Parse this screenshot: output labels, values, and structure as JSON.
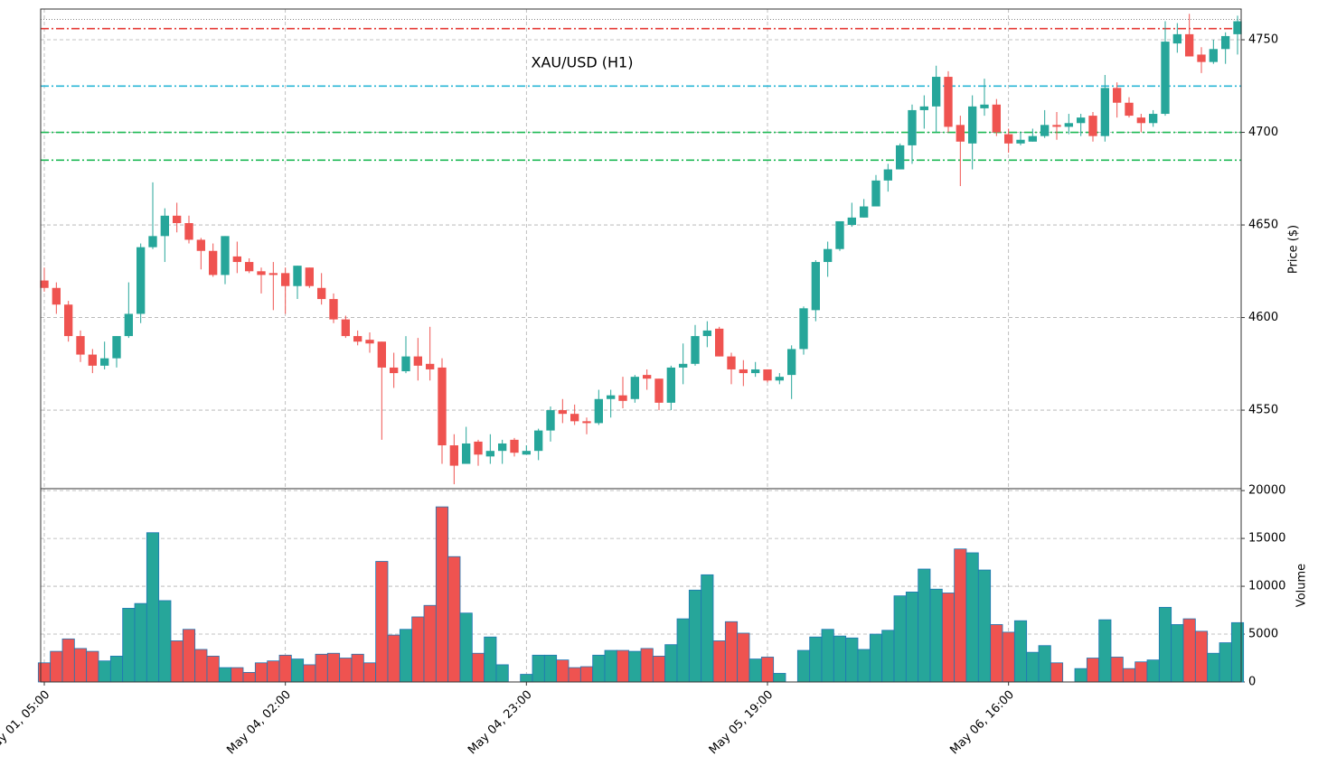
{
  "chart_data": {
    "type": "candlestick",
    "title": "XAU/USD (H1)",
    "ylabel": "Price ($)",
    "categories": [
      "May 01, 05:00",
      null,
      null,
      null,
      null,
      null,
      null,
      null,
      null,
      null,
      null,
      null,
      null,
      null,
      null,
      null,
      null,
      null,
      null,
      null,
      "May 04, 02:00",
      null,
      null,
      null,
      null,
      null,
      null,
      null,
      null,
      null,
      null,
      null,
      null,
      null,
      null,
      null,
      null,
      null,
      null,
      null,
      "May 04, 23:00",
      null,
      null,
      null,
      null,
      null,
      null,
      null,
      null,
      null,
      null,
      null,
      null,
      null,
      null,
      null,
      null,
      null,
      null,
      null,
      "May 05, 19:00",
      null,
      null,
      null,
      null,
      null,
      null,
      null,
      null,
      null,
      null,
      null,
      null,
      null,
      null,
      null,
      null,
      null,
      null,
      null,
      "May 06, 16:00",
      null,
      null,
      null,
      null,
      null,
      null,
      null,
      null,
      null,
      null,
      null,
      null,
      null,
      null,
      null,
      null,
      null,
      null,
      null
    ],
    "open": [
      4620,
      4616,
      4607,
      4590,
      4580,
      4574,
      4578,
      4590,
      4602,
      4638,
      4644,
      4655,
      4651,
      4642,
      4636,
      4623,
      4633,
      4630,
      4625,
      4624,
      4624,
      4617,
      4627,
      4616,
      4610,
      4599,
      4590,
      4588,
      4587,
      4573,
      4571,
      4579,
      4575,
      4573,
      4531,
      4521,
      4533,
      4525,
      4528,
      4534,
      4526,
      4528,
      4539,
      4550,
      4548,
      4544,
      4543,
      4556,
      4558,
      4556,
      4569,
      4567,
      4554,
      4573,
      4575,
      4590,
      4594,
      4579,
      4572,
      4570,
      4572,
      4566,
      4569,
      4583,
      4604,
      4630,
      4637,
      4650,
      4654,
      4660,
      4674,
      4680,
      4693,
      4712,
      4714,
      4730,
      4704,
      4694,
      4713,
      4715,
      4699,
      4694,
      4695,
      4698,
      4704,
      4703,
      4705,
      4709,
      4698,
      4724,
      4716,
      4708,
      4705,
      4710,
      4748,
      4753,
      4742,
      4738,
      4745,
      4753
    ],
    "high": [
      4627,
      4619,
      4609,
      4593,
      4583,
      4587,
      4590,
      4619,
      4640,
      4673,
      4659,
      4662,
      4655,
      4643,
      4640,
      4644,
      4641,
      4632,
      4627,
      4630,
      4627,
      4628,
      4627,
      4624,
      4613,
      4601,
      4593,
      4592,
      4587,
      4581,
      4590,
      4589,
      4595,
      4578,
      4537,
      4541,
      4534,
      4537,
      4534,
      4535,
      4531,
      4540,
      4552,
      4556,
      4553,
      4546,
      4561,
      4561,
      4568,
      4569,
      4572,
      4567,
      4574,
      4586,
      4596,
      4598,
      4595,
      4581,
      4577,
      4576,
      4572,
      4570,
      4585,
      4606,
      4631,
      4641,
      4652,
      4662,
      4664,
      4677,
      4683,
      4694,
      4715,
      4720,
      4736,
      4733,
      4709,
      4720,
      4729,
      4718,
      4702,
      4700,
      4702,
      4712,
      4711,
      4710,
      4710,
      4711,
      4731,
      4727,
      4719,
      4710,
      4712,
      4760,
      4759,
      4764,
      4746,
      4750,
      4754,
      4763
    ],
    "low": [
      4614,
      4602,
      4587,
      4576,
      4570,
      4572,
      4573,
      4589,
      4597,
      4637,
      4630,
      4646,
      4640,
      4626,
      4622,
      4618,
      4624,
      4624,
      4613,
      4604,
      4602,
      4610,
      4616,
      4607,
      4597,
      4589,
      4585,
      4581,
      4534,
      4562,
      4570,
      4566,
      4566,
      4521,
      4510,
      4521,
      4520,
      4521,
      4521,
      4525,
      4526,
      4523,
      4533,
      4543,
      4542,
      4537,
      4542,
      4546,
      4551,
      4554,
      4561,
      4550,
      4550,
      4564,
      4574,
      4584,
      4579,
      4564,
      4563,
      4568,
      4565,
      4564,
      4556,
      4580,
      4598,
      4622,
      4636,
      4649,
      4654,
      4660,
      4668,
      4680,
      4683,
      4702,
      4700,
      4700,
      4671,
      4680,
      4709,
      4698,
      4689,
      4693,
      4695,
      4697,
      4696,
      4699,
      4698,
      4695,
      4695,
      4708,
      4708,
      4700,
      4703,
      4709,
      4743,
      4741,
      4732,
      4737,
      4737,
      4742
    ],
    "close": [
      4616,
      4607,
      4590,
      4580,
      4574,
      4578,
      4590,
      4602,
      4638,
      4644,
      4655,
      4651,
      4642,
      4636,
      4623,
      4644,
      4630,
      4625,
      4623,
      4623,
      4617,
      4628,
      4617,
      4610,
      4599,
      4590,
      4587,
      4586,
      4573,
      4570,
      4579,
      4574,
      4572,
      4531,
      4520,
      4532,
      4526,
      4528,
      4532,
      4527,
      4528,
      4539,
      4550,
      4548,
      4544,
      4543,
      4556,
      4558,
      4555,
      4568,
      4567,
      4554,
      4573,
      4575,
      4590,
      4593,
      4579,
      4572,
      4570,
      4572,
      4566,
      4568,
      4583,
      4605,
      4630,
      4637,
      4652,
      4654,
      4660,
      4674,
      4680,
      4693,
      4712,
      4714,
      4730,
      4703,
      4695,
      4714,
      4715,
      4700,
      4694,
      4696,
      4698,
      4704,
      4703,
      4705,
      4708,
      4698,
      4724,
      4716,
      4709,
      4705,
      4710,
      4749,
      4753,
      4741,
      4738,
      4745,
      4752,
      4760
    ],
    "up_color": "#26a69a",
    "down_color": "#ef5350",
    "ylim": [
      4507.6,
      4766.6
    ],
    "yticks": [
      4550,
      4600,
      4650,
      4700,
      4750
    ],
    "grid": true,
    "hlines": [
      {
        "value": 4761,
        "color": "#888888",
        "style": "dotted"
      },
      {
        "value": 4756,
        "color": "#e53935",
        "style": "dashdot"
      },
      {
        "value": 4725,
        "color": "#29b6d6",
        "style": "dashdot"
      },
      {
        "value": 4700,
        "color": "#1db954",
        "style": "dashdot"
      },
      {
        "value": 4685,
        "color": "#1db954",
        "style": "dashdot"
      }
    ],
    "volume": {
      "label": "Volume",
      "edge_color": "#1f77b4",
      "values": [
        2000,
        3200,
        4500,
        3500,
        3200,
        2200,
        2700,
        7700,
        8200,
        15600,
        8500,
        4300,
        5500,
        3400,
        2700,
        1500,
        1500,
        1000,
        2000,
        2200,
        2800,
        2400,
        1800,
        2900,
        3000,
        2500,
        2900,
        2000,
        12600,
        4900,
        5500,
        6800,
        8000,
        18300,
        13100,
        7200,
        3000,
        4700,
        1800,
        0,
        800,
        2800,
        2800,
        2300,
        1500,
        1600,
        2800,
        3300,
        3300,
        3200,
        3500,
        2700,
        3900,
        6600,
        9600,
        11200,
        4300,
        6300,
        5100,
        2400,
        2600,
        900,
        0,
        3300,
        4700,
        5500,
        4800,
        4600,
        3400,
        5000,
        5400,
        9000,
        9400,
        11800,
        9700,
        9300,
        13900,
        13500,
        11700,
        6000,
        5200,
        6400,
        3100,
        3800,
        2000,
        0,
        1400,
        2500,
        6500,
        2600,
        1400,
        2100,
        2300,
        7800,
        6000,
        6600,
        5300,
        3000,
        4100,
        6200
      ],
      "ylim": [
        0,
        20200
      ],
      "yticks": [
        0,
        5000,
        10000,
        15000,
        20000
      ]
    }
  }
}
